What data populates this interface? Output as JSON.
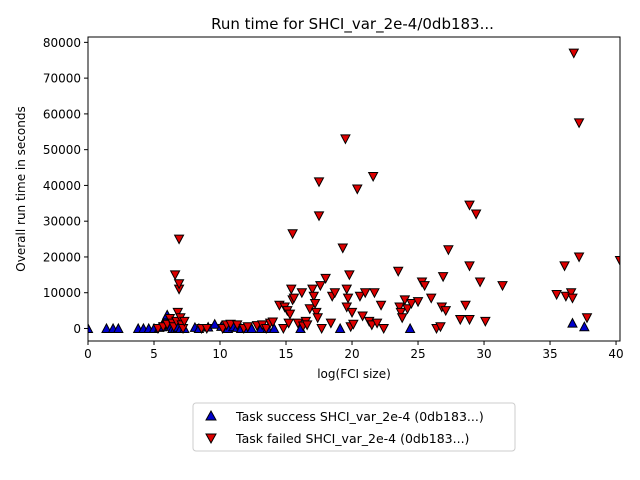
{
  "chart_data": {
    "type": "scatter",
    "title": "Run time for SHCI_var_2e-4/0db183...",
    "xlabel": "log(FCI size)",
    "ylabel": "Overall run time in seconds",
    "xlim": [
      0,
      40.3
    ],
    "ylim": [
      -3500,
      81500
    ],
    "x_ticks": [
      0,
      5,
      10,
      15,
      20,
      25,
      30,
      35,
      40
    ],
    "y_ticks": [
      0,
      10000,
      20000,
      30000,
      40000,
      50000,
      60000,
      70000,
      80000
    ],
    "grid": false,
    "legend_position": "below-center",
    "series": [
      {
        "name": "Task success SHCI_var_2e-4 (0db183...)",
        "marker": "triangle-up",
        "color": "#0000cc",
        "points": [
          [
            0,
            0
          ],
          [
            1.4,
            0
          ],
          [
            1.9,
            0
          ],
          [
            2.3,
            0
          ],
          [
            3.8,
            0
          ],
          [
            4.2,
            0
          ],
          [
            4.6,
            0
          ],
          [
            5.0,
            0
          ],
          [
            5.4,
            300
          ],
          [
            5.6,
            500
          ],
          [
            5.7,
            1500
          ],
          [
            5.8,
            2200
          ],
          [
            5.9,
            2500
          ],
          [
            6.0,
            3800
          ],
          [
            6.1,
            2000
          ],
          [
            6.2,
            1000
          ],
          [
            6.3,
            600
          ],
          [
            6.4,
            0
          ],
          [
            6.6,
            0
          ],
          [
            6.8,
            300
          ],
          [
            7.0,
            0
          ],
          [
            7.3,
            0
          ],
          [
            8.1,
            300
          ],
          [
            8.4,
            0
          ],
          [
            9.1,
            400
          ],
          [
            9.6,
            1200
          ],
          [
            10.1,
            600
          ],
          [
            10.6,
            0
          ],
          [
            11.0,
            500
          ],
          [
            11.3,
            300
          ],
          [
            11.6,
            0
          ],
          [
            12.0,
            0
          ],
          [
            12.4,
            0
          ],
          [
            13.1,
            0
          ],
          [
            13.6,
            0
          ],
          [
            14.1,
            0
          ],
          [
            16.1,
            0
          ],
          [
            19.1,
            0
          ],
          [
            24.4,
            0
          ],
          [
            36.7,
            1500
          ],
          [
            37.6,
            500
          ]
        ]
      },
      {
        "name": "Task failed SHCI_var_2e-4 (0db183...)",
        "marker": "triangle-down",
        "color": "#dd0000",
        "points": [
          [
            5.3,
            0
          ],
          [
            5.7,
            500
          ],
          [
            6.0,
            1200
          ],
          [
            6.2,
            2800
          ],
          [
            6.4,
            1500
          ],
          [
            6.5,
            500
          ],
          [
            6.6,
            15000
          ],
          [
            6.7,
            2000
          ],
          [
            6.8,
            4500
          ],
          [
            6.9,
            25000
          ],
          [
            6.9,
            11000
          ],
          [
            6.9,
            12500
          ],
          [
            7.0,
            3000
          ],
          [
            7.1,
            1000
          ],
          [
            7.2,
            0
          ],
          [
            7.3,
            2000
          ],
          [
            8.6,
            0
          ],
          [
            9.0,
            0
          ],
          [
            10.2,
            0
          ],
          [
            10.5,
            1000
          ],
          [
            10.8,
            1200
          ],
          [
            11.3,
            1000
          ],
          [
            11.8,
            0
          ],
          [
            12.1,
            500
          ],
          [
            12.8,
            800
          ],
          [
            13.2,
            1000
          ],
          [
            13.5,
            0
          ],
          [
            13.8,
            1500
          ],
          [
            14.0,
            1800
          ],
          [
            14.5,
            6500
          ],
          [
            14.8,
            0
          ],
          [
            14.9,
            6000
          ],
          [
            15.1,
            5000
          ],
          [
            15.2,
            1500
          ],
          [
            15.3,
            4000
          ],
          [
            15.4,
            11000
          ],
          [
            15.5,
            26500
          ],
          [
            15.5,
            8000
          ],
          [
            15.6,
            8500
          ],
          [
            15.9,
            1500
          ],
          [
            16.2,
            10000
          ],
          [
            16.3,
            700
          ],
          [
            16.5,
            2000
          ],
          [
            16.6,
            1000
          ],
          [
            16.8,
            5500
          ],
          [
            17.0,
            11000
          ],
          [
            17.1,
            9000
          ],
          [
            17.2,
            7000
          ],
          [
            17.3,
            4500
          ],
          [
            17.4,
            3000
          ],
          [
            17.5,
            31500
          ],
          [
            17.5,
            41000
          ],
          [
            17.6,
            12000
          ],
          [
            17.7,
            0
          ],
          [
            18.0,
            14000
          ],
          [
            18.4,
            1500
          ],
          [
            18.5,
            9000
          ],
          [
            18.7,
            10000
          ],
          [
            19.3,
            22500
          ],
          [
            19.5,
            53000
          ],
          [
            19.6,
            6000
          ],
          [
            19.6,
            11000
          ],
          [
            19.7,
            8500
          ],
          [
            19.8,
            15000
          ],
          [
            19.9,
            500
          ],
          [
            20.0,
            4500
          ],
          [
            20.1,
            1200
          ],
          [
            20.4,
            39000
          ],
          [
            20.6,
            9000
          ],
          [
            20.8,
            3500
          ],
          [
            21.0,
            10000
          ],
          [
            21.3,
            2000
          ],
          [
            21.5,
            1000
          ],
          [
            21.6,
            42500
          ],
          [
            21.7,
            10000
          ],
          [
            21.9,
            1500
          ],
          [
            22.2,
            6500
          ],
          [
            22.4,
            0
          ],
          [
            23.5,
            16000
          ],
          [
            23.6,
            6000
          ],
          [
            23.7,
            4500
          ],
          [
            23.8,
            3000
          ],
          [
            24.0,
            8000
          ],
          [
            24.2,
            5500
          ],
          [
            24.5,
            7000
          ],
          [
            25.0,
            7500
          ],
          [
            25.3,
            13000
          ],
          [
            25.5,
            12000
          ],
          [
            26.0,
            8500
          ],
          [
            26.4,
            0
          ],
          [
            26.7,
            500
          ],
          [
            26.8,
            6000
          ],
          [
            26.9,
            14500
          ],
          [
            27.1,
            5000
          ],
          [
            27.3,
            22000
          ],
          [
            28.2,
            2500
          ],
          [
            28.6,
            6500
          ],
          [
            28.9,
            34500
          ],
          [
            28.9,
            17500
          ],
          [
            28.9,
            2500
          ],
          [
            29.4,
            32000
          ],
          [
            29.7,
            13000
          ],
          [
            30.1,
            2000
          ],
          [
            31.4,
            12000
          ],
          [
            35.5,
            9500
          ],
          [
            36.1,
            17500
          ],
          [
            36.2,
            9000
          ],
          [
            36.6,
            10000
          ],
          [
            36.7,
            8500
          ],
          [
            36.8,
            77000
          ],
          [
            37.2,
            57500
          ],
          [
            37.2,
            20000
          ],
          [
            37.8,
            3000
          ],
          [
            40.3,
            19000
          ]
        ]
      }
    ]
  }
}
